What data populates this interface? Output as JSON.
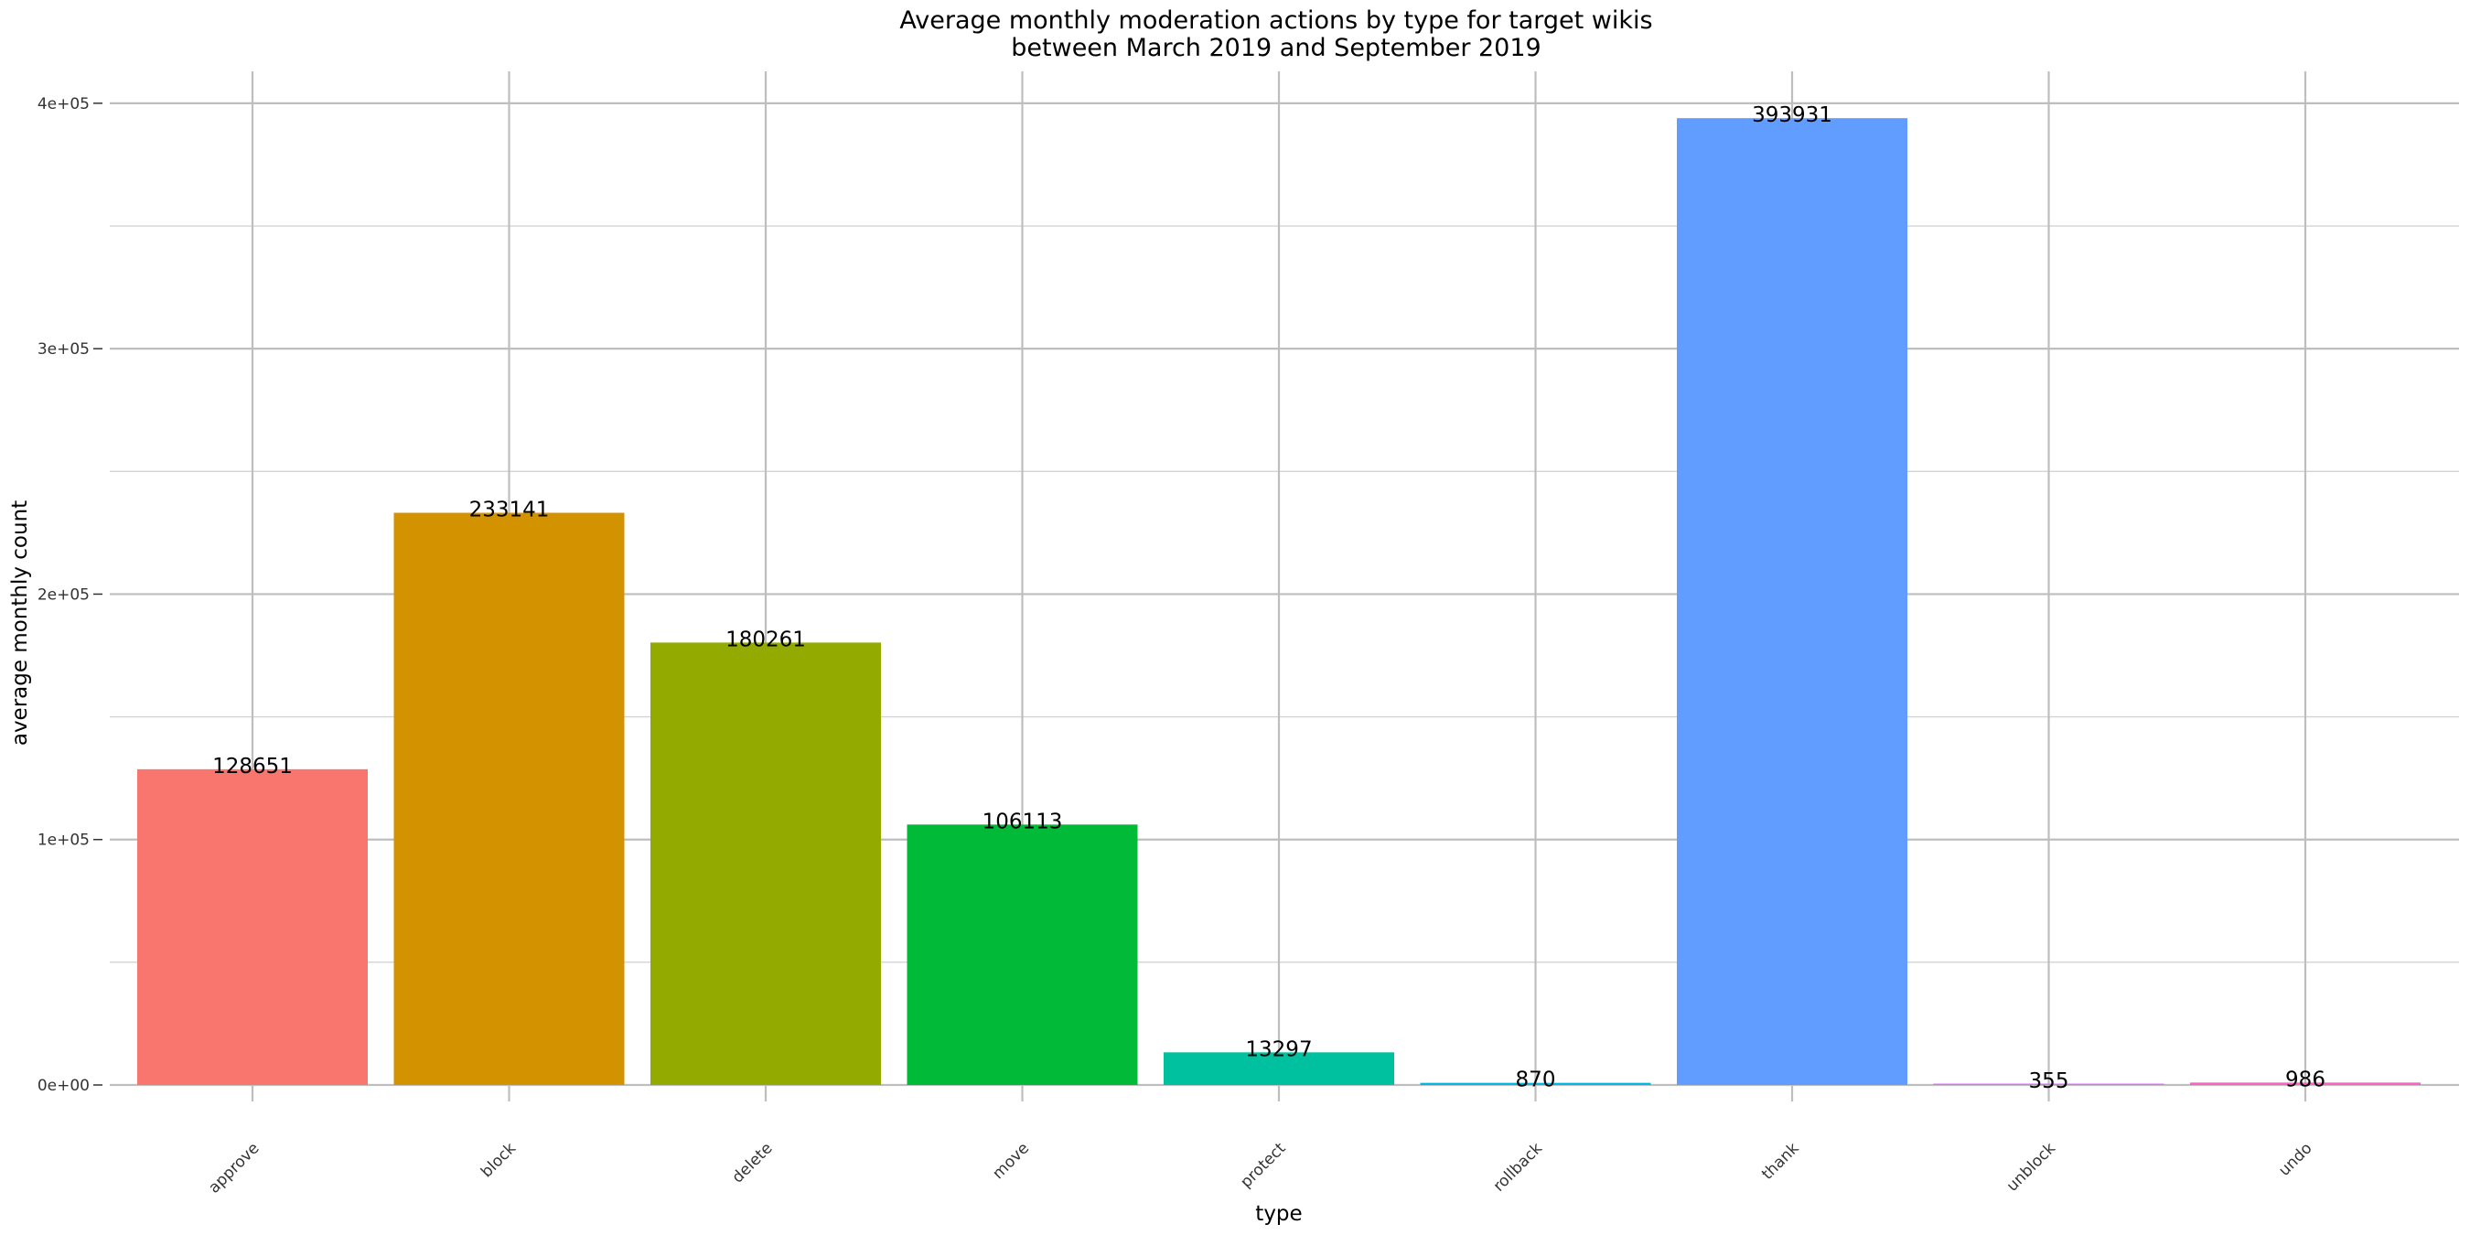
{
  "chart_data": {
    "type": "bar",
    "title": "Average monthly moderation actions by type for target wikis",
    "subtitle": "between March 2019 and September 2019",
    "xlabel": "type",
    "ylabel": "average monthly count",
    "categories": [
      "approve",
      "block",
      "delete",
      "move",
      "protect",
      "rollback",
      "thank",
      "unblock",
      "undo"
    ],
    "values": [
      128651,
      233141,
      180261,
      106113,
      13297,
      870,
      393931,
      355,
      986
    ],
    "value_labels": [
      "128651",
      "233141",
      "180261",
      "106113",
      "13297",
      "870",
      "393931",
      "355",
      "986"
    ],
    "colors": [
      "#F8766D",
      "#D39200",
      "#93AA00",
      "#00BA38",
      "#00C19F",
      "#00B9E3",
      "#619CFF",
      "#DB72FB",
      "#FF61C3"
    ],
    "ylim": [
      0,
      413000
    ],
    "y_ticks": [
      0,
      100000,
      200000,
      300000,
      400000
    ],
    "y_tick_labels": [
      "0e+00",
      "1e+05",
      "2e+05",
      "3e+05",
      "4e+05"
    ],
    "grid": true,
    "legend": "none"
  }
}
